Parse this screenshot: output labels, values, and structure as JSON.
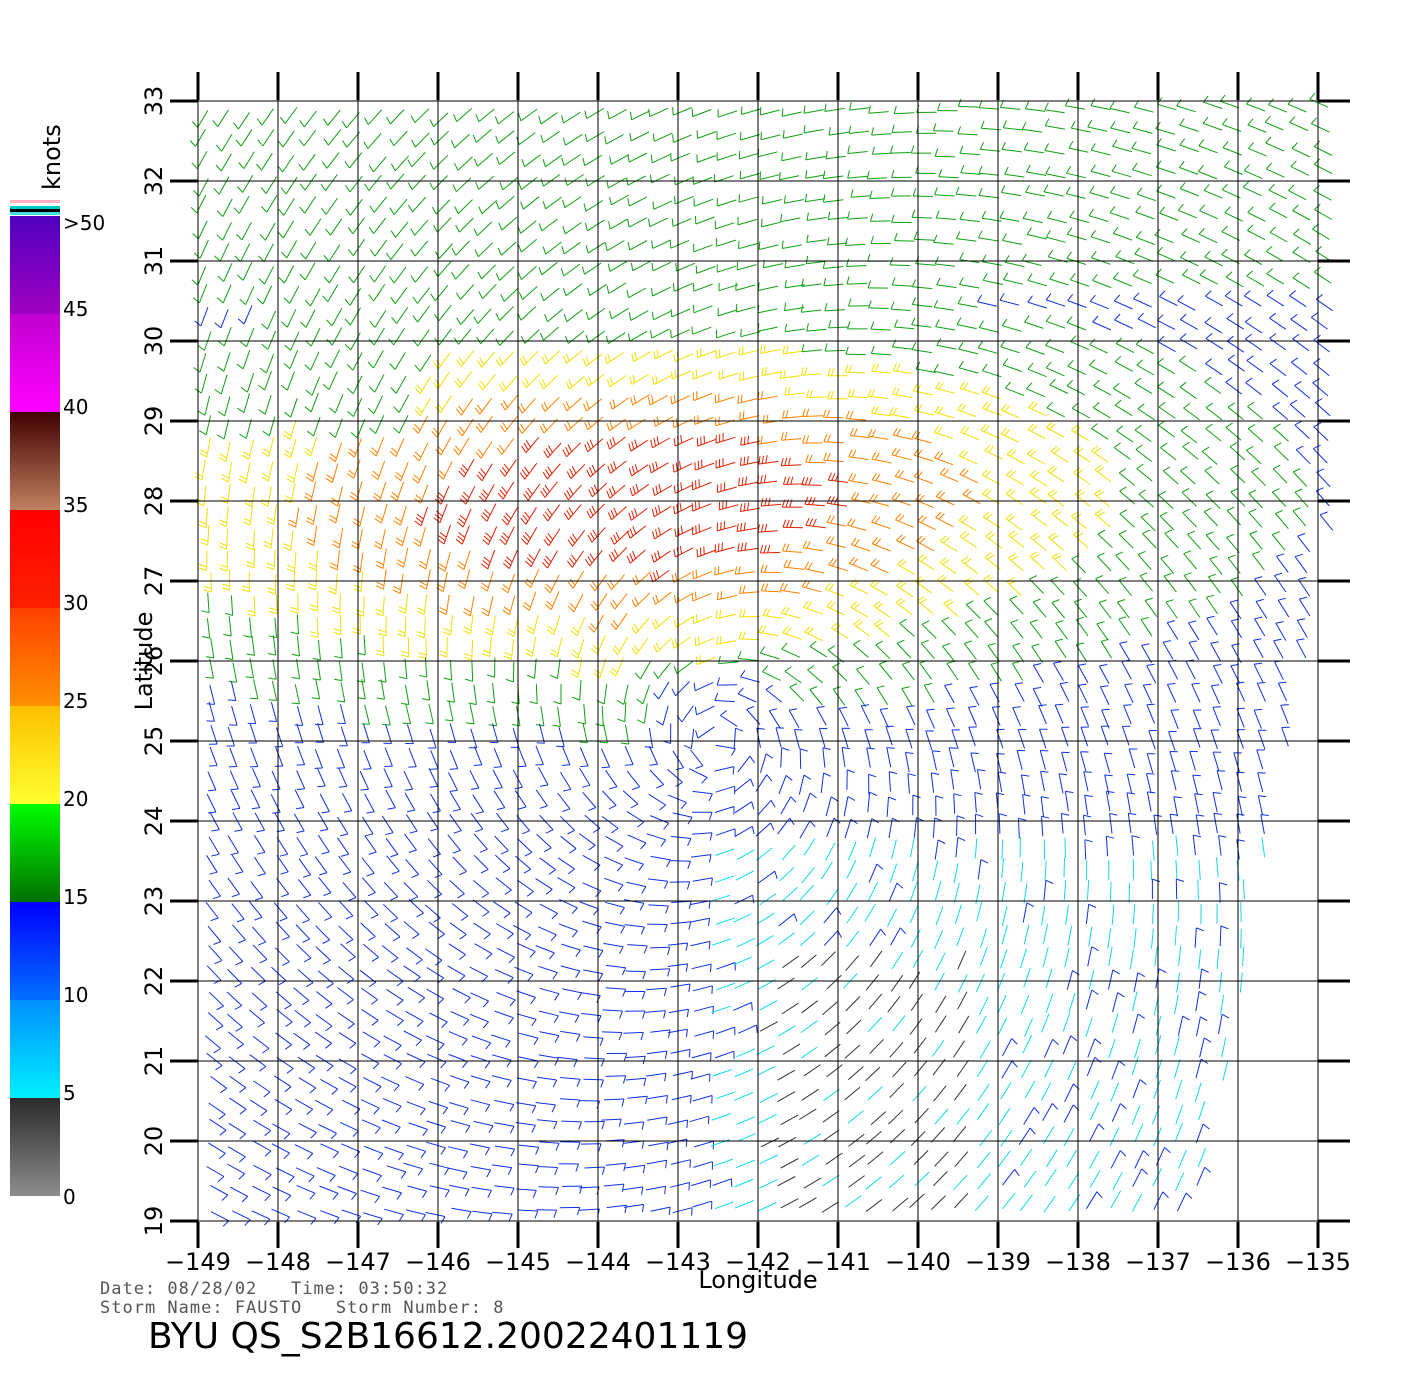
{
  "map": {
    "lon_range": [
      -149,
      -135
    ],
    "lat_range": [
      19,
      33
    ],
    "lon_ticks": [
      "-149",
      "-148",
      "-147",
      "-146",
      "-145",
      "-144",
      "-143",
      "-142",
      "-141",
      "-140",
      "-139",
      "-138",
      "-137",
      "-136",
      "-135"
    ],
    "lat_ticks": [
      "19",
      "20",
      "21",
      "22",
      "23",
      "24",
      "25",
      "26",
      "27",
      "28",
      "29",
      "30",
      "31",
      "32",
      "33"
    ],
    "x_label": "Longitude",
    "y_label": "Latitude",
    "grid": true,
    "storm_center": {
      "lon": -142.5,
      "lat": 25.0
    },
    "colorbar": {
      "unit": "knots",
      "bands": [
        {
          "label": "0",
          "from": 0,
          "to": 5,
          "colors": [
            "#8c8c8c",
            "#2a2a2a"
          ]
        },
        {
          "label": "5",
          "from": 5,
          "to": 10,
          "colors": [
            "#00f0ff",
            "#0090ff"
          ]
        },
        {
          "label": "10",
          "from": 10,
          "to": 15,
          "colors": [
            "#0070ff",
            "#0000ff"
          ]
        },
        {
          "label": "15",
          "from": 15,
          "to": 20,
          "colors": [
            "#007000",
            "#00ff00"
          ]
        },
        {
          "label": "20",
          "from": 20,
          "to": 25,
          "colors": [
            "#ffff30",
            "#ffc000"
          ]
        },
        {
          "label": "25",
          "from": 25,
          "to": 30,
          "colors": [
            "#ff9000",
            "#ff4000"
          ]
        },
        {
          "label": "30",
          "from": 30,
          "to": 35,
          "colors": [
            "#ff2000",
            "#ff0000"
          ]
        },
        {
          "label": "35",
          "from": 35,
          "to": 40,
          "colors": [
            "#c08060",
            "#400000"
          ]
        },
        {
          "label": "40",
          "from": 40,
          "to": 45,
          "colors": [
            "#ff00ff",
            "#c000d0"
          ]
        },
        {
          "label": "45",
          "from": 45,
          "to": 50,
          "colors": [
            "#a000c0",
            "#5000c0"
          ]
        },
        {
          "label": ">50",
          "from": 50,
          "to": 55,
          "colors": [],
          "label_only": true
        }
      ],
      "top_caps": [
        "#ffb0c0",
        "#ffffff",
        "#00c8c8",
        "#000000",
        "#40e0e0"
      ]
    }
  },
  "footer": {
    "date_line": "Date: 08/28/02   Time: 03:50:32",
    "storm_line": "Storm Name: FAUSTO   Storm Number: 8",
    "title": "BYU QS_S2B16612.20022401119"
  }
}
